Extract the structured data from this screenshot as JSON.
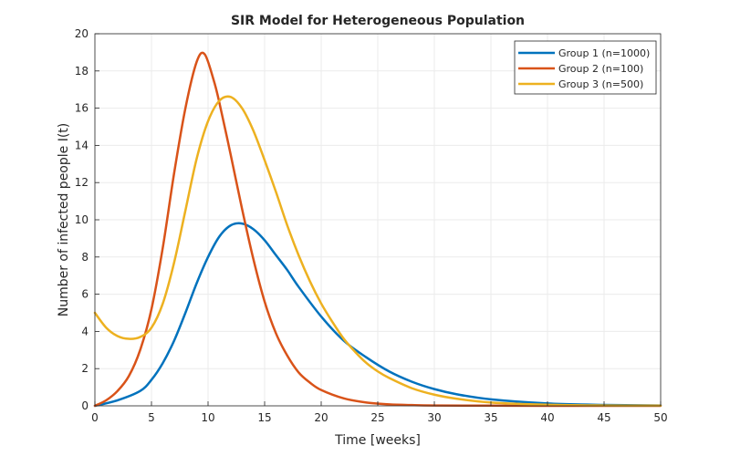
{
  "chart_data": {
    "type": "line",
    "title": "SIR Model for Heterogeneous Population",
    "xlabel": "Time [weeks]",
    "ylabel": "Number of infected people I(t)",
    "xlim": [
      0,
      50
    ],
    "ylim": [
      0,
      20
    ],
    "xticks": [
      0,
      5,
      10,
      15,
      20,
      25,
      30,
      35,
      40,
      45,
      50
    ],
    "yticks": [
      0,
      2,
      4,
      6,
      8,
      10,
      12,
      14,
      16,
      18,
      20
    ],
    "grid": true,
    "legend_position": "top-right",
    "series": [
      {
        "name": "Group 1 (n=1000)",
        "color": "#0072BD",
        "x": [
          0,
          2,
          4,
          5,
          6,
          7,
          8,
          9,
          10,
          11,
          12,
          13,
          14,
          15,
          16,
          17,
          18,
          20,
          22,
          24,
          26,
          28,
          30,
          32,
          35,
          40,
          45,
          50
        ],
        "y": [
          0.0,
          0.3,
          0.8,
          1.4,
          2.3,
          3.5,
          5.0,
          6.6,
          8.0,
          9.1,
          9.7,
          9.8,
          9.5,
          8.9,
          8.1,
          7.3,
          6.4,
          4.8,
          3.5,
          2.6,
          1.85,
          1.3,
          0.9,
          0.62,
          0.35,
          0.13,
          0.05,
          0.02
        ]
      },
      {
        "name": "Group 2 (n=100)",
        "color": "#D95319",
        "x": [
          0,
          1,
          2,
          3,
          4,
          5,
          6,
          7,
          8,
          9,
          9.7,
          10.5,
          11,
          12,
          13,
          14,
          15,
          16,
          17,
          18,
          19,
          20,
          22,
          24,
          26,
          28,
          30,
          35,
          40,
          50
        ],
        "y": [
          0.0,
          0.3,
          0.8,
          1.6,
          3.0,
          5.2,
          8.5,
          12.5,
          16.0,
          18.5,
          18.9,
          17.5,
          16.3,
          13.5,
          10.6,
          7.9,
          5.6,
          3.9,
          2.7,
          1.8,
          1.25,
          0.85,
          0.4,
          0.18,
          0.08,
          0.04,
          0.02,
          0.01,
          0.0,
          0.0
        ]
      },
      {
        "name": "Group 3 (n=500)",
        "color": "#EDB120",
        "x": [
          0,
          1,
          2,
          3,
          4,
          5,
          6,
          7,
          8,
          9,
          10,
          11,
          12,
          13,
          14,
          15,
          16,
          17,
          18,
          19,
          20,
          21,
          22,
          23,
          24,
          25,
          26,
          28,
          30,
          32,
          35,
          40,
          45,
          50
        ],
        "y": [
          5.0,
          4.2,
          3.75,
          3.6,
          3.7,
          4.2,
          5.5,
          7.7,
          10.5,
          13.3,
          15.3,
          16.4,
          16.6,
          16.0,
          14.8,
          13.2,
          11.5,
          9.7,
          8.1,
          6.7,
          5.5,
          4.5,
          3.6,
          2.9,
          2.3,
          1.85,
          1.5,
          0.95,
          0.6,
          0.38,
          0.18,
          0.06,
          0.02,
          0.01
        ]
      }
    ]
  },
  "colors": {
    "axis": "#262626",
    "grid": "#ebebeb",
    "background": "#ffffff"
  }
}
